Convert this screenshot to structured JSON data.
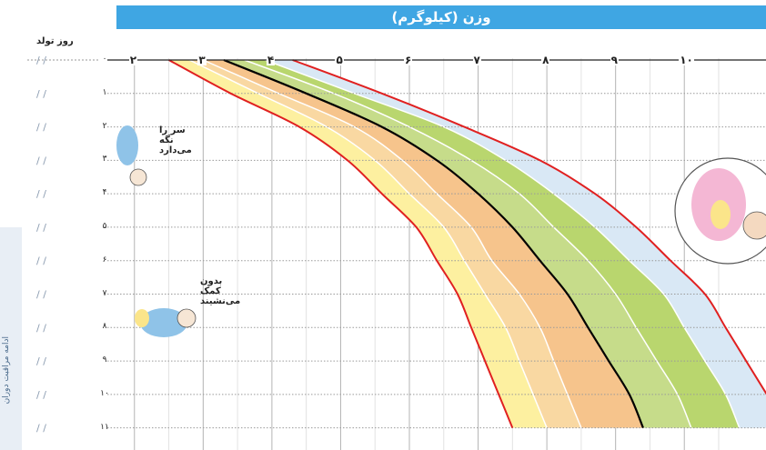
{
  "chart_data": {
    "type": "area",
    "title": "وزن (کیلوگرم)",
    "xlabel": "روز تولد",
    "weight_ticks": [
      "۲",
      "۳",
      "۴",
      "۵",
      "۶",
      "۷",
      "۸",
      "۹",
      "۱۰"
    ],
    "month_ticks": [
      "۰",
      "۱",
      "۲",
      "۳",
      "۴",
      "۵",
      "۶",
      "۷",
      "۸",
      "۹",
      "۱۰",
      "۱۱"
    ],
    "months": [
      0,
      1,
      2,
      3,
      4,
      5,
      6,
      7,
      8,
      9,
      10,
      11
    ],
    "weight_range": [
      1.5,
      10.5
    ],
    "month_range": [
      0,
      11.2
    ],
    "series": [
      {
        "values": [
          2.5,
          3.4,
          4.4,
          5.1,
          5.6,
          6.1,
          6.4,
          6.7,
          6.9,
          7.1,
          7.3,
          7.5
        ],
        "color": "#e02020"
      },
      {
        "values": [
          2.8,
          3.8,
          4.8,
          5.5,
          6.0,
          6.5,
          6.8,
          7.1,
          7.4,
          7.6,
          7.8,
          8.0
        ],
        "color": "#fff3a8"
      },
      {
        "values": [
          3.0,
          4.1,
          5.2,
          5.9,
          6.4,
          6.9,
          7.2,
          7.6,
          7.9,
          8.1,
          8.3,
          8.5
        ],
        "color": "#f6c48c"
      },
      {
        "values": [
          3.3,
          4.5,
          5.6,
          6.4,
          7.0,
          7.5,
          7.9,
          8.3,
          8.6,
          8.9,
          9.2,
          9.4
        ],
        "color": "#000000"
      },
      {
        "values": [
          3.6,
          4.9,
          6.0,
          6.9,
          7.6,
          8.1,
          8.6,
          9.0,
          9.3,
          9.6,
          9.9,
          10.1
        ],
        "color": "#b9d66e"
      },
      {
        "values": [
          3.9,
          5.2,
          6.5,
          7.4,
          8.1,
          8.7,
          9.2,
          9.7,
          10.0,
          10.3,
          10.6,
          10.8
        ],
        "color": "#d9e8f5"
      },
      {
        "values": [
          4.3,
          5.6,
          6.8,
          7.9,
          8.7,
          9.3,
          9.8,
          10.3,
          10.6,
          10.9,
          11.2,
          11.5
        ],
        "color": "#e02020"
      }
    ],
    "colors": {
      "header": "#3fa6e3",
      "grid": "#b4b4b4",
      "mid_line": "#000000",
      "bound_line": "#e02020"
    },
    "milestones": [
      {
        "text": "سر را نگه می‌دارد",
        "month": 3
      },
      {
        "text": "بدون کمک می‌نشیند",
        "month": 7.5
      }
    ],
    "side_text": "ادامه مراقبت دوران"
  }
}
